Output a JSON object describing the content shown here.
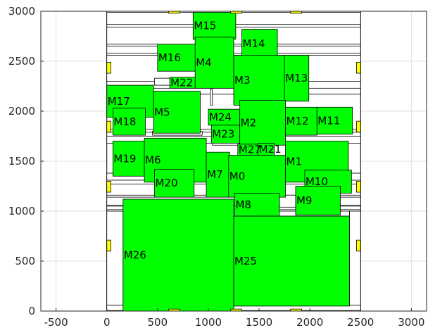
{
  "chart_data": {
    "type": "diagram",
    "title": "",
    "xlabel": "",
    "ylabel": "",
    "xlim": [
      -650,
      3150
    ],
    "ylim": [
      0,
      3000
    ],
    "x_ticks": [
      -500,
      0,
      500,
      1000,
      1500,
      2000,
      2500,
      3000
    ],
    "y_ticks": [
      0,
      500,
      1000,
      1500,
      2000,
      2500,
      3000
    ],
    "x_tick_labels": [
      "-500",
      "0",
      "500",
      "1000",
      "1500",
      "2000",
      "2500",
      "3000"
    ],
    "y_tick_labels": [
      "0",
      "500",
      "1000",
      "1500",
      "2000",
      "2500",
      "3000"
    ],
    "grid": true,
    "colors": {
      "module": "#00ff00",
      "pad": "#ffff00",
      "grid": "#e0e0e0",
      "edge": "#000000"
    },
    "outline": [
      0,
      0,
      2500,
      3000
    ],
    "white_rects": [
      [
        0,
        2870,
        2500,
        2990
      ],
      [
        0,
        2670,
        2500,
        2840
      ],
      [
        0,
        2580,
        2500,
        2650
      ],
      [
        0,
        2300,
        2500,
        2560
      ],
      [
        0,
        2170,
        2500,
        2230
      ],
      [
        0,
        1790,
        2500,
        1820
      ],
      [
        0,
        1680,
        2500,
        1750
      ],
      [
        0,
        1310,
        2500,
        1380
      ],
      [
        0,
        1160,
        2500,
        1270
      ],
      [
        0,
        1060,
        2500,
        1140
      ],
      [
        0,
        1015,
        2500,
        1050
      ],
      [
        0,
        5,
        2500,
        60
      ],
      [
        0,
        60,
        160,
        1000
      ],
      [
        2390,
        60,
        2500,
        1000
      ],
      [
        1270,
        950,
        2390,
        1000
      ],
      [
        1700,
        1040,
        1860,
        1160
      ],
      [
        1880,
        2160,
        1980,
        2210
      ],
      [
        470,
        2260,
        630,
        2330
      ],
      [
        450,
        1760,
        940,
        1800
      ],
      [
        1040,
        1960,
        1300,
        1990
      ],
      [
        1040,
        1660,
        1300,
        1700
      ],
      [
        1020,
        2060,
        1040,
        2220
      ]
    ],
    "modules": [
      {
        "name": "M15",
        "x1": 850,
        "y1": 2720,
        "x2": 1270,
        "y2": 2990
      },
      {
        "name": "M14",
        "x1": 1330,
        "y1": 2530,
        "x2": 1680,
        "y2": 2820
      },
      {
        "name": "M16",
        "x1": 500,
        "y1": 2400,
        "x2": 880,
        "y2": 2670
      },
      {
        "name": "M4",
        "x1": 870,
        "y1": 2230,
        "x2": 1250,
        "y2": 2740
      },
      {
        "name": "M3",
        "x1": 1250,
        "y1": 2060,
        "x2": 1750,
        "y2": 2560
      },
      {
        "name": "M13",
        "x1": 1750,
        "y1": 2100,
        "x2": 1990,
        "y2": 2560
      },
      {
        "name": "M22",
        "x1": 620,
        "y1": 2230,
        "x2": 870,
        "y2": 2340
      },
      {
        "name": "M17",
        "x1": 0,
        "y1": 1940,
        "x2": 460,
        "y2": 2260
      },
      {
        "name": "M5",
        "x1": 460,
        "y1": 1780,
        "x2": 920,
        "y2": 2200
      },
      {
        "name": "M18",
        "x1": 60,
        "y1": 1760,
        "x2": 380,
        "y2": 2030
      },
      {
        "name": "M24",
        "x1": 1000,
        "y1": 1860,
        "x2": 1310,
        "y2": 2020
      },
      {
        "name": "M23",
        "x1": 1030,
        "y1": 1680,
        "x2": 1310,
        "y2": 1860
      },
      {
        "name": "M2",
        "x1": 1310,
        "y1": 1660,
        "x2": 1760,
        "y2": 2110
      },
      {
        "name": "M12",
        "x1": 1760,
        "y1": 1760,
        "x2": 2070,
        "y2": 2040
      },
      {
        "name": "M11",
        "x1": 2070,
        "y1": 1770,
        "x2": 2420,
        "y2": 2040
      },
      {
        "name": "M19",
        "x1": 60,
        "y1": 1350,
        "x2": 370,
        "y2": 1700
      },
      {
        "name": "M6",
        "x1": 370,
        "y1": 1290,
        "x2": 980,
        "y2": 1730
      },
      {
        "name": "M7",
        "x1": 980,
        "y1": 1140,
        "x2": 1210,
        "y2": 1590
      },
      {
        "name": "M0",
        "x1": 1200,
        "y1": 1140,
        "x2": 1760,
        "y2": 1560
      },
      {
        "name": "M27",
        "x1": 1290,
        "y1": 1560,
        "x2": 1560,
        "y2": 1670
      },
      {
        "name": "M21",
        "x1": 1490,
        "y1": 1560,
        "x2": 1650,
        "y2": 1680
      },
      {
        "name": "M1",
        "x1": 1760,
        "y1": 1290,
        "x2": 2380,
        "y2": 1700
      },
      {
        "name": "M10",
        "x1": 1950,
        "y1": 1180,
        "x2": 2410,
        "y2": 1410
      },
      {
        "name": "M20",
        "x1": 470,
        "y1": 1140,
        "x2": 860,
        "y2": 1420
      },
      {
        "name": "M8",
        "x1": 1260,
        "y1": 950,
        "x2": 1700,
        "y2": 1180
      },
      {
        "name": "M9",
        "x1": 1860,
        "y1": 960,
        "x2": 2300,
        "y2": 1250
      },
      {
        "name": "M26",
        "x1": 160,
        "y1": 0,
        "x2": 1250,
        "y2": 1120
      },
      {
        "name": "M25",
        "x1": 1250,
        "y1": 50,
        "x2": 2390,
        "y2": 950
      }
    ],
    "pads": [
      [
        610,
        2980,
        720,
        3000
      ],
      [
        1220,
        2980,
        1330,
        3000
      ],
      [
        1810,
        2980,
        1920,
        3000
      ],
      [
        610,
        0,
        720,
        20
      ],
      [
        1220,
        0,
        1330,
        20
      ],
      [
        1810,
        0,
        1920,
        20
      ],
      [
        0,
        2380,
        40,
        2490
      ],
      [
        0,
        1790,
        40,
        1900
      ],
      [
        0,
        1190,
        40,
        1300
      ],
      [
        0,
        600,
        40,
        710
      ],
      [
        2460,
        2380,
        2500,
        2490
      ],
      [
        2460,
        1790,
        2500,
        1900
      ],
      [
        2460,
        1190,
        2500,
        1300
      ],
      [
        2460,
        600,
        2500,
        710
      ]
    ]
  }
}
